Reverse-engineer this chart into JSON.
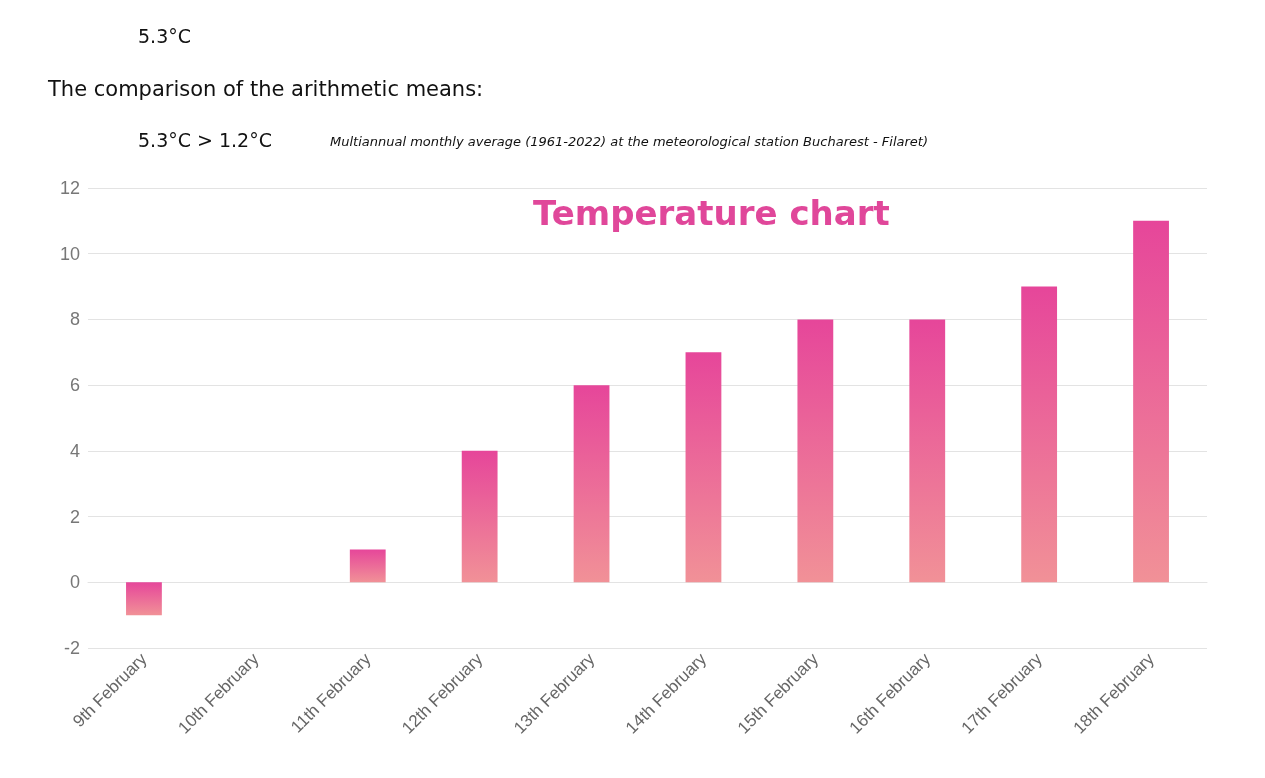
{
  "chart_data": {
    "type": "bar",
    "title": "Temperature chart",
    "categories": [
      "9th February",
      "10th February",
      "11th February",
      "12th February",
      "13th February",
      "14th February",
      "15th February",
      "16th February",
      "17th February",
      "18th February"
    ],
    "values": [
      -1,
      0,
      1,
      4,
      6,
      7,
      8,
      8,
      9,
      11
    ],
    "color": "#e6469a",
    "ylim": [
      -2,
      12
    ],
    "yticks": [
      -2,
      0,
      2,
      4,
      6,
      8,
      10,
      12
    ],
    "grid": "y",
    "annotations": [
      "5.3°C",
      "The comparison of the arithmetic means:",
      "5.3°C > 1.2°C",
      "Multiannual monthly average (1961-2022) at the meteorological station Bucharest - Filaret)"
    ]
  }
}
